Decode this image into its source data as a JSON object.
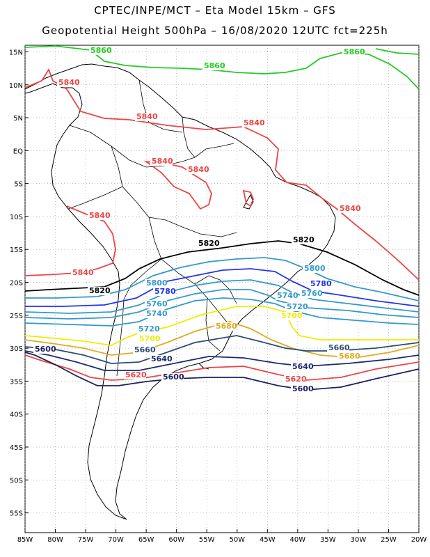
{
  "header": {
    "line1": "CPTEC/INPE/MCT –  Eta Model 15km – GFS",
    "line2": "Geopotential Height 500hPa – 16/08/2020 12UTC fct=225h"
  },
  "axes": {
    "lat_labels": [
      "15N",
      "10N",
      "5N",
      "EQ",
      "5S",
      "10S",
      "15S",
      "20S",
      "25S",
      "30S",
      "35S",
      "40S",
      "45S",
      "50S",
      "55S"
    ],
    "lon_labels": [
      "85W",
      "80W",
      "75W",
      "70W",
      "65W",
      "60W",
      "55W",
      "50W",
      "45W",
      "40W",
      "35W",
      "30W",
      "25W",
      "20W"
    ],
    "lat_range": [
      -58,
      16
    ],
    "lon_range": [
      -85,
      -20
    ],
    "grid": "dotted"
  },
  "contours": [
    {
      "level": "5860",
      "color": "#22cc22",
      "labels": [
        "5860",
        "5860",
        "5860"
      ]
    },
    {
      "level": "5840",
      "color": "#ee4444",
      "labels": [
        "5840",
        "5840",
        "5840",
        "5840",
        "5840",
        "5840",
        "5840",
        "5840"
      ]
    },
    {
      "level": "5820",
      "color": "#000000",
      "labels": [
        "5820",
        "5820",
        "5820"
      ]
    },
    {
      "level": "5800",
      "color": "#3399cc",
      "labels": [
        "5800",
        "5800"
      ]
    },
    {
      "level": "5780",
      "color": "#2233ee",
      "labels": [
        "5780",
        "5780"
      ]
    },
    {
      "level": "5760",
      "color": "#3399cc",
      "labels": [
        "5760",
        "5760"
      ]
    },
    {
      "level": "5740",
      "color": "#3399cc",
      "labels": [
        "5740",
        "5740"
      ]
    },
    {
      "level": "5720",
      "color": "#3399cc",
      "labels": [
        "5720",
        "5720"
      ]
    },
    {
      "level": "5700",
      "color": "#eeee00",
      "labels": [
        "5700",
        "5700"
      ]
    },
    {
      "level": "5680",
      "color": "#ddaa22",
      "labels": [
        "5680",
        "5680"
      ]
    },
    {
      "level": "5660",
      "color": "#2a4a7a",
      "labels": [
        "5660",
        "5660"
      ]
    },
    {
      "level": "5640",
      "color": "#1a2a6e",
      "labels": [
        "5640",
        "5640"
      ]
    },
    {
      "level": "5620",
      "color": "#ee4444",
      "labels": [
        "5620",
        "5620"
      ]
    },
    {
      "level": "5600",
      "color": "#1a2060",
      "labels": [
        "5600",
        "5600",
        "5600"
      ]
    }
  ]
}
